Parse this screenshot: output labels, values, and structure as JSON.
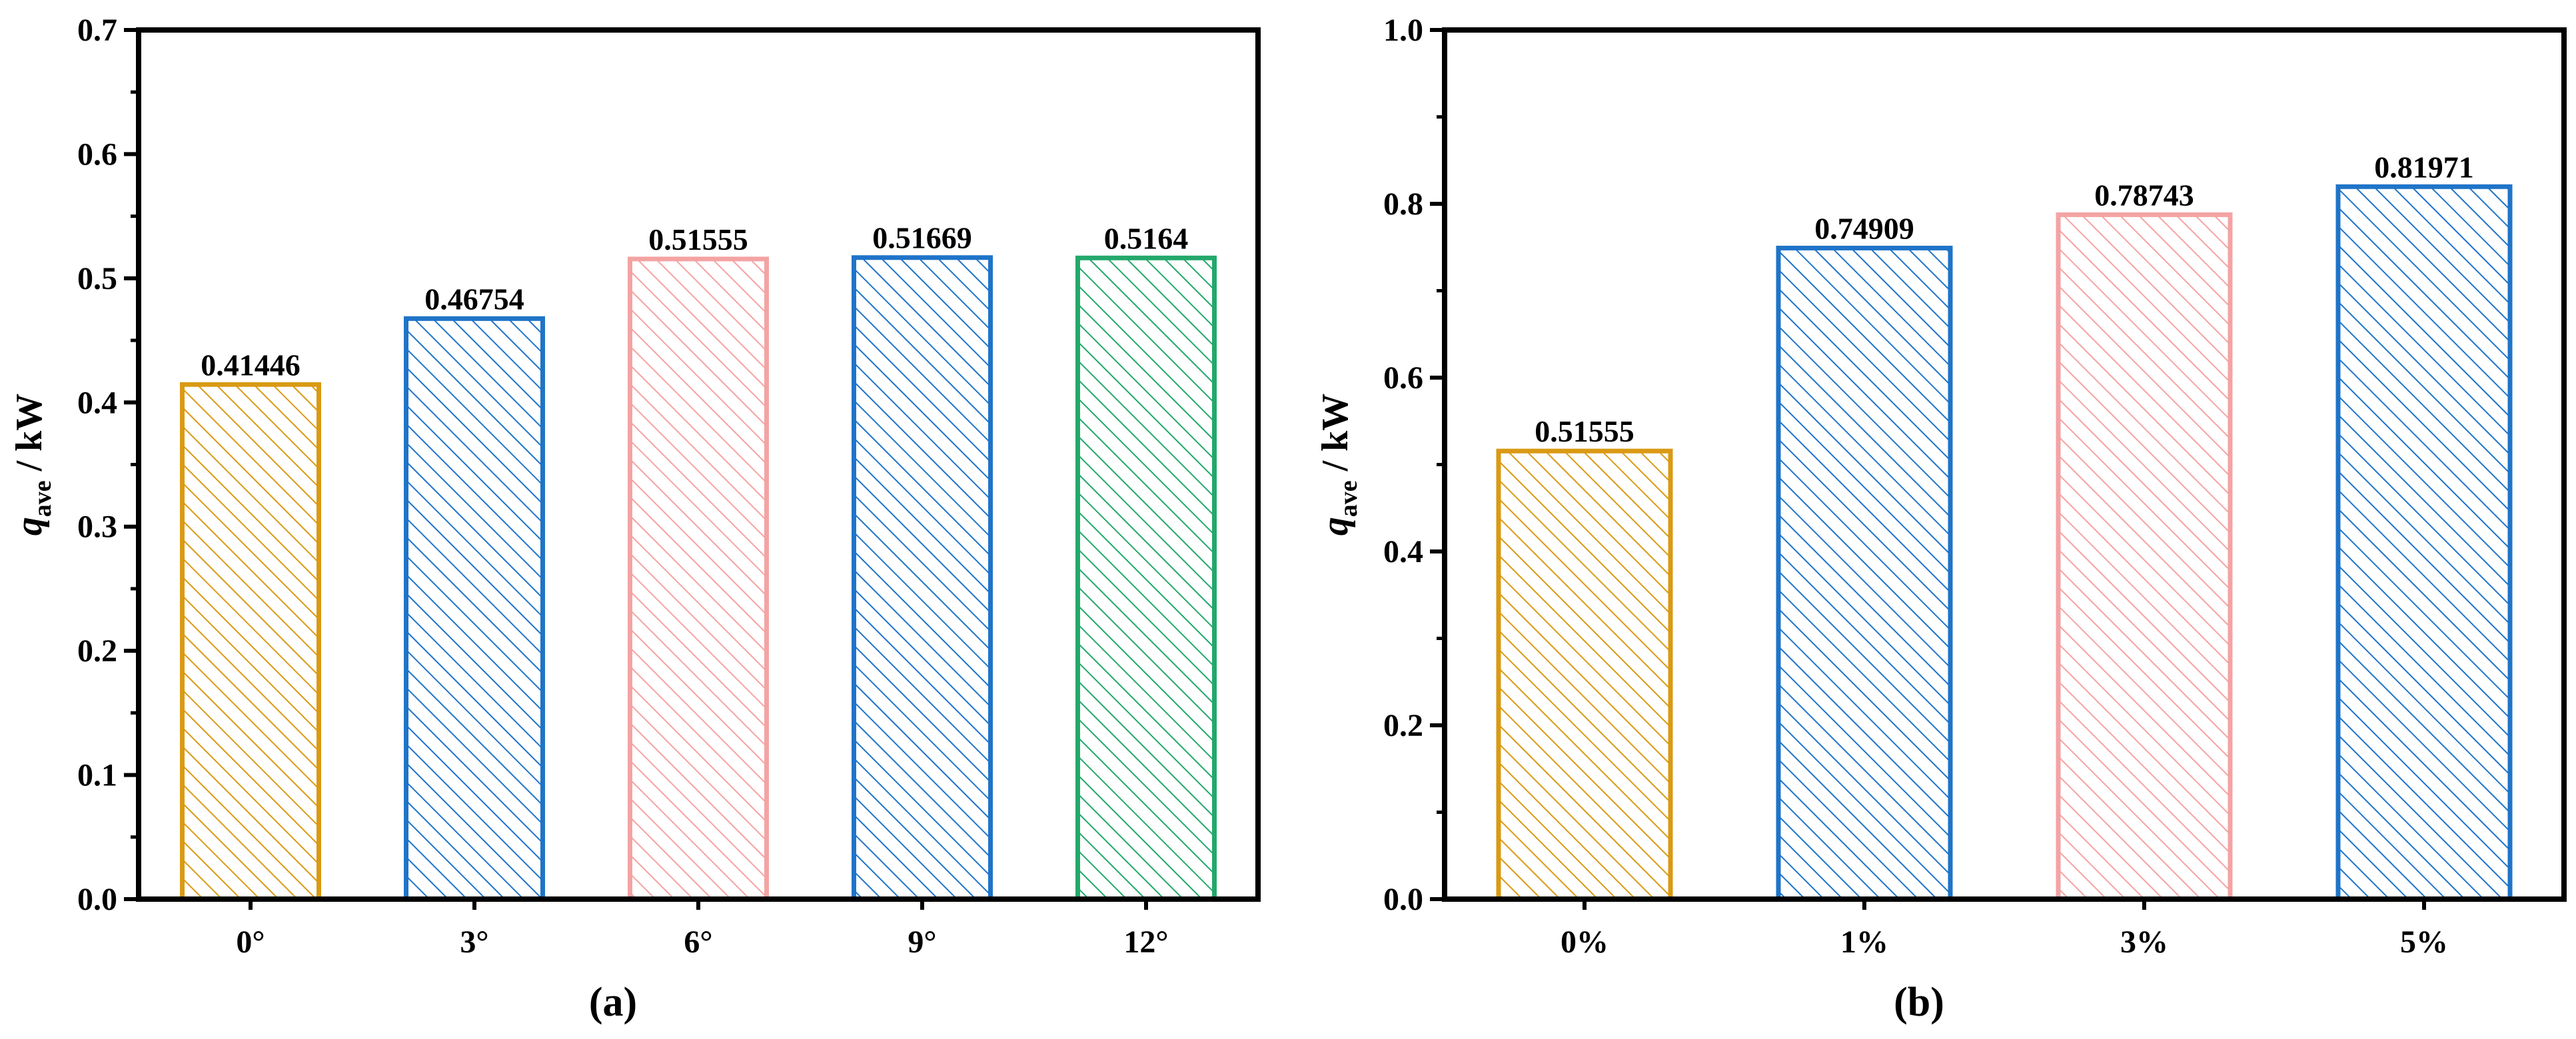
{
  "chart_data": [
    {
      "type": "bar",
      "panel_label": "a",
      "categories": [
        "0°",
        "3°",
        "6°",
        "9°",
        "12°"
      ],
      "values": [
        0.41446,
        0.46754,
        0.51555,
        0.51669,
        0.5164
      ],
      "data_labels": [
        "0.41446",
        "0.46754",
        "0.51555",
        "0.51669",
        "0.5164"
      ],
      "colors": [
        "#d99a14",
        "#1f74c8",
        "#f4a3a3",
        "#1f74c8",
        "#23a86b"
      ],
      "fill": "diagonal-hatch",
      "ylabel": {
        "symbol": "q",
        "subscript": "ave",
        "unit": " / kW"
      },
      "ylim": [
        0,
        0.7
      ],
      "yticks": [
        "0.0",
        "0.1",
        "0.2",
        "0.3",
        "0.4",
        "0.5",
        "0.6",
        "0.7"
      ],
      "ytick_values": [
        0,
        0.1,
        0.2,
        0.3,
        0.4,
        0.5,
        0.6,
        0.7
      ],
      "grid": false
    },
    {
      "type": "bar",
      "panel_label": "b",
      "categories": [
        "0%",
        "1%",
        "3%",
        "5%"
      ],
      "values": [
        0.51555,
        0.74909,
        0.78743,
        0.81971
      ],
      "data_labels": [
        "0.51555",
        "0.74909",
        "0.78743",
        "0.81971"
      ],
      "colors": [
        "#d99a14",
        "#1f74c8",
        "#f4a3a3",
        "#1f74c8"
      ],
      "fill": "diagonal-hatch",
      "ylabel": {
        "symbol": "q",
        "subscript": "ave",
        "unit": " / kW"
      },
      "ylim": [
        0,
        1.0
      ],
      "yticks": [
        "0.0",
        "0.2",
        "0.4",
        "0.6",
        "0.8",
        "1.0"
      ],
      "ytick_values": [
        0,
        0.2,
        0.4,
        0.6,
        0.8,
        1.0
      ],
      "grid": false
    }
  ]
}
